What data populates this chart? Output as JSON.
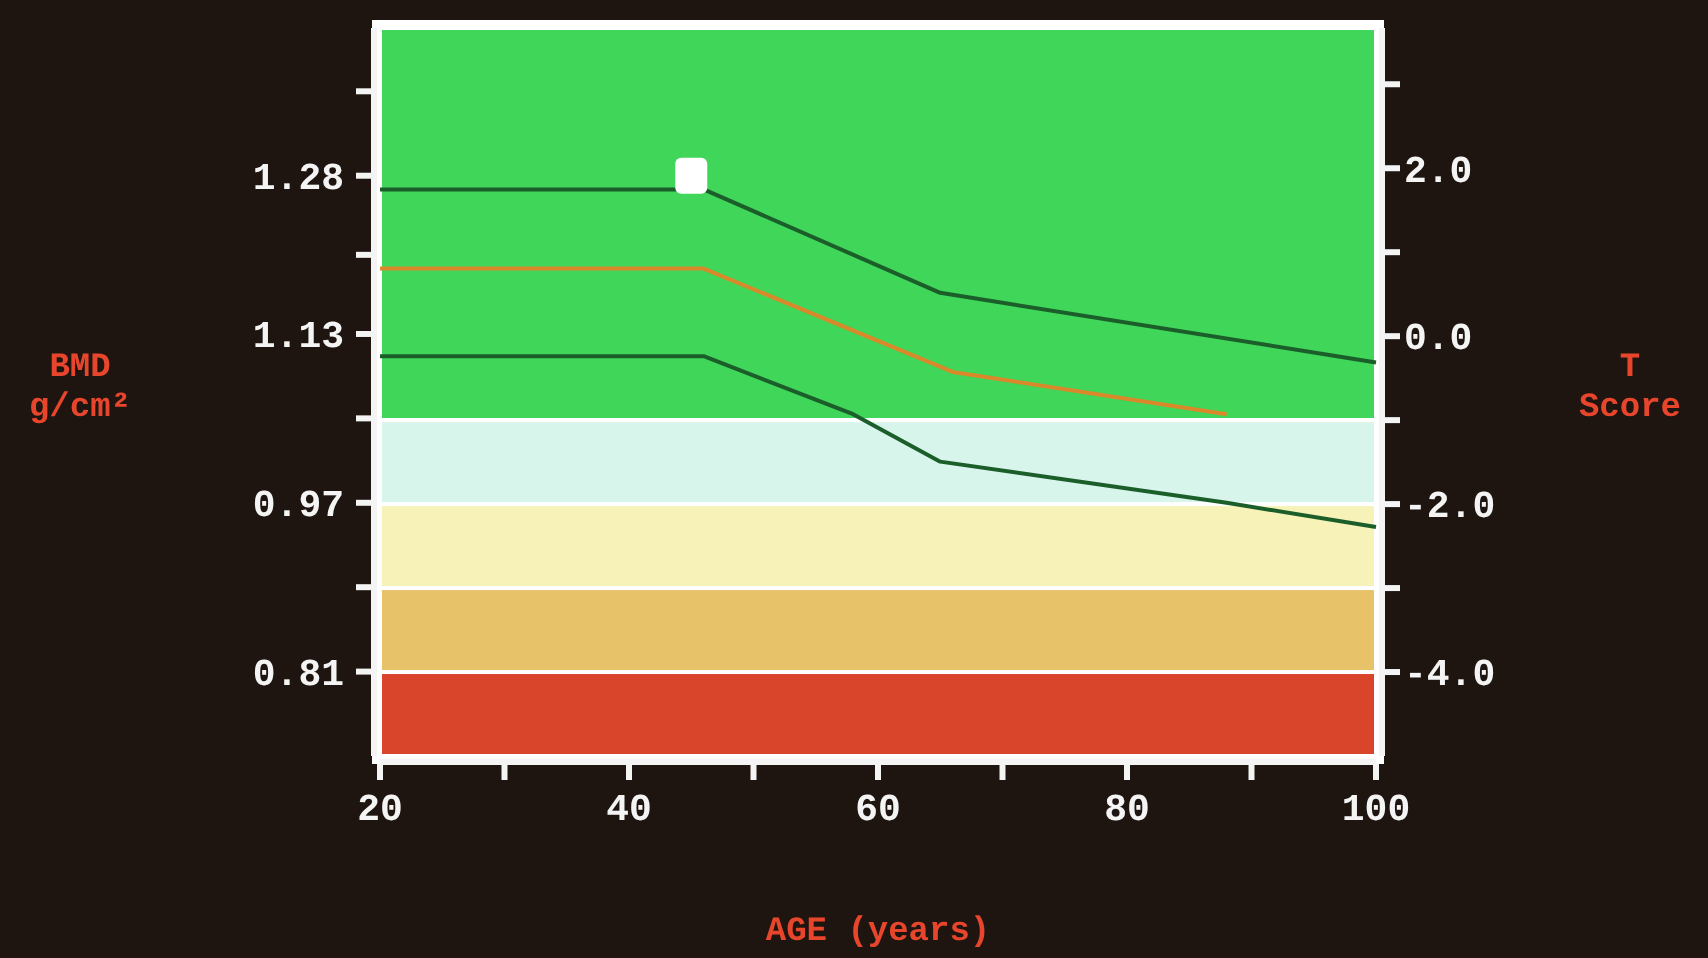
{
  "chart_data": {
    "type": "line",
    "xlabel": "AGE (years)",
    "ylabel": "BMD g/cm²",
    "y2label": "T Score",
    "xlim": [
      20,
      100
    ],
    "xticks": [
      20,
      {
        "value": 30,
        "label": null
      },
      40,
      {
        "value": 50,
        "label": null
      },
      60,
      {
        "value": 70,
        "label": null
      },
      80,
      {
        "value": 90,
        "label": null
      },
      100
    ],
    "ylim": [
      0.73,
      1.42
    ],
    "yticks": [
      {
        "value": 1.36,
        "label": null
      },
      1.28,
      {
        "value": 1.205,
        "label": null
      },
      1.13,
      {
        "value": 1.05,
        "label": null
      },
      0.97,
      {
        "value": 0.89,
        "label": null
      },
      0.81
    ],
    "y2lim": [
      -5.0,
      3.67
    ],
    "y2ticks": [
      {
        "value": 3,
        "label": null
      },
      {
        "value": 2,
        "label": "2.0"
      },
      {
        "value": 1,
        "label": null
      },
      {
        "value": 0,
        "label": "0.0"
      },
      {
        "value": -1,
        "label": null
      },
      {
        "value": -2,
        "label": "-2.0"
      },
      {
        "value": -3,
        "label": null
      },
      {
        "value": -4,
        "label": "-4.0"
      }
    ],
    "bands": [
      {
        "axis": "y2",
        "from": -1,
        "to": 3.67,
        "color": "#3fd65a"
      },
      {
        "axis": "y2",
        "from": -2,
        "to": -1,
        "color": "#d8f5ec"
      },
      {
        "axis": "y2",
        "from": -3,
        "to": -2,
        "color": "#f7f2b8"
      },
      {
        "axis": "y2",
        "from": -4,
        "to": -3,
        "color": "#e8c268"
      },
      {
        "axis": "y2",
        "from": -5.0,
        "to": -4,
        "color": "#d8452a"
      }
    ],
    "series": [
      {
        "color": "#1b5e2a",
        "x": [
          20,
          46,
          65,
          100
        ],
        "values": [
          1.267,
          1.267,
          1.169,
          1.103
        ]
      },
      {
        "color": "#d9892a",
        "x": [
          20,
          46,
          66,
          88
        ],
        "values": [
          1.192,
          1.192,
          1.094,
          1.054
        ]
      },
      {
        "color": "#1b5e2a",
        "x": [
          20,
          46,
          58,
          65,
          88,
          100
        ],
        "values": [
          1.109,
          1.109,
          1.054,
          1.009,
          0.97,
          0.947
        ]
      },
      {
        "type": "scatter",
        "marker": "square",
        "color": "#ffffff",
        "x": [
          45
        ],
        "values": [
          1.28
        ]
      }
    ]
  }
}
